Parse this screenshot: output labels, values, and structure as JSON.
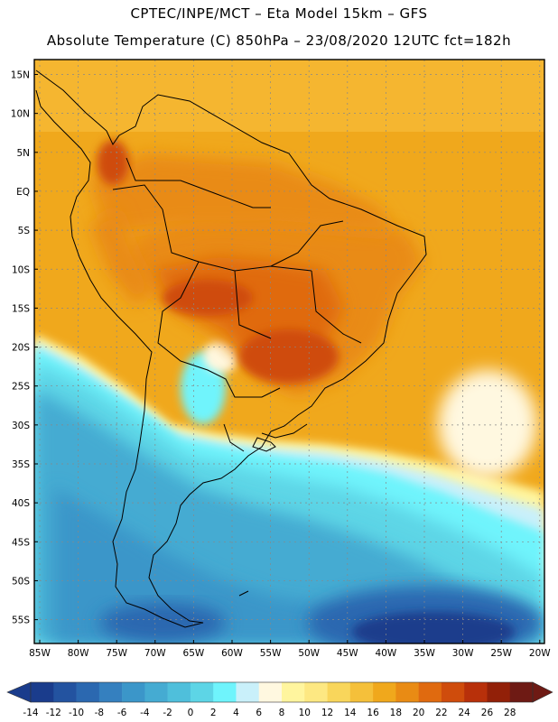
{
  "header": {
    "line1": "CPTEC/INPE/MCT –  Eta Model 15km – GFS",
    "line2": "Absolute Temperature (C) 850hPa – 23/08/2020 12UTC fct=182h"
  },
  "map": {
    "lat_labels": [
      "15N",
      "10N",
      "5N",
      "EQ",
      "5S",
      "10S",
      "15S",
      "20S",
      "25S",
      "30S",
      "35S",
      "40S",
      "45S",
      "50S",
      "55S"
    ],
    "lon_labels": [
      "85W",
      "80W",
      "75W",
      "70W",
      "65W",
      "60W",
      "55W",
      "50W",
      "45W",
      "40W",
      "35W",
      "30W",
      "25W",
      "20W"
    ]
  },
  "colorbar": {
    "labels": [
      "-14",
      "-12",
      "-10",
      "-8",
      "-6",
      "-4",
      "-2",
      "0",
      "2",
      "4",
      "6",
      "8",
      "10",
      "12",
      "14",
      "16",
      "18",
      "20",
      "22",
      "24",
      "26",
      "28"
    ],
    "colors": [
      "#1a3c8c",
      "#2353a0",
      "#2b68b0",
      "#3580bf",
      "#3b96c9",
      "#45abd2",
      "#4fbfdb",
      "#5dd5e6",
      "#6ff4fc",
      "#c9f0fa",
      "#fff8e0",
      "#fff59e",
      "#fde882",
      "#f9d65b",
      "#f5c03a",
      "#f0a81c",
      "#e98b14",
      "#e06a0f",
      "#cf4c0c",
      "#b8300a",
      "#922008",
      "#6e1a14"
    ],
    "min_color": "#1a3c8c",
    "max_color": "#6e1a14"
  }
}
